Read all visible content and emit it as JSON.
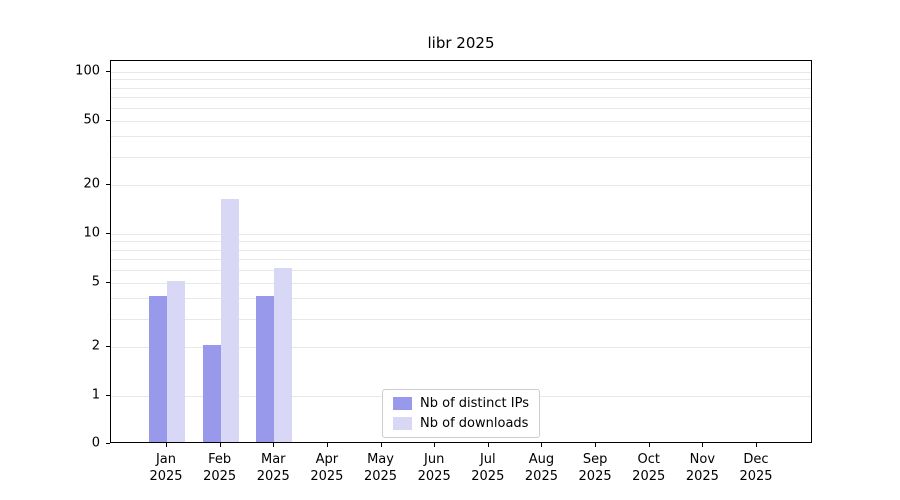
{
  "chart_data": {
    "type": "bar",
    "title": "libr 2025",
    "categories": [
      "Jan",
      "Feb",
      "Mar",
      "Apr",
      "May",
      "Jun",
      "Jul",
      "Aug",
      "Sep",
      "Oct",
      "Nov",
      "Dec"
    ],
    "x_year": "2025",
    "series": [
      {
        "name": "Nb of distinct IPs",
        "color": "#9999ec",
        "values": [
          4,
          2,
          4,
          0,
          0,
          0,
          0,
          0,
          0,
          0,
          0,
          0
        ]
      },
      {
        "name": "Nb of downloads",
        "color": "#d8d8f6",
        "values": [
          5,
          16,
          6,
          0,
          0,
          0,
          0,
          0,
          0,
          0,
          0,
          0
        ]
      }
    ],
    "y_ticks": [
      0,
      1,
      2,
      5,
      10,
      20,
      50,
      100
    ],
    "ylim": [
      0,
      100
    ],
    "y_scale": "symlog",
    "grid": "horizontal-log-minor",
    "gridline_color": "#e8e8e8",
    "legend_position": "bottom-center"
  }
}
